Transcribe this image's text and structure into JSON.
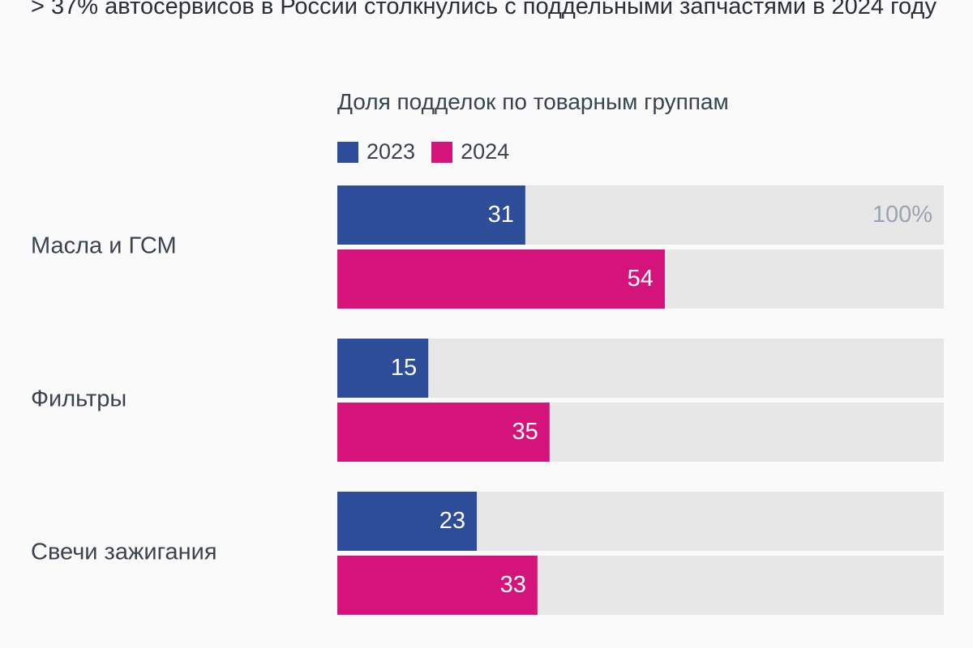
{
  "headline": "> 37% автосервисов в России столкнулись с поддельными запчастями в 2024 году",
  "colors": {
    "y2023": "#2e4d99",
    "y2024": "#d4147a",
    "track": "#e7e7e7"
  },
  "chart_data": {
    "type": "bar",
    "orientation": "horizontal",
    "title": "Доля подделок по товарным группам",
    "max_label": "100%",
    "xlim": [
      0,
      100
    ],
    "categories": [
      "Масла и ГСМ",
      "Фильтры",
      "Свечи зажигания"
    ],
    "series": [
      {
        "name": "2023",
        "values": [
          31,
          15,
          23
        ]
      },
      {
        "name": "2024",
        "values": [
          54,
          35,
          33
        ]
      }
    ],
    "legend_position": "top"
  }
}
